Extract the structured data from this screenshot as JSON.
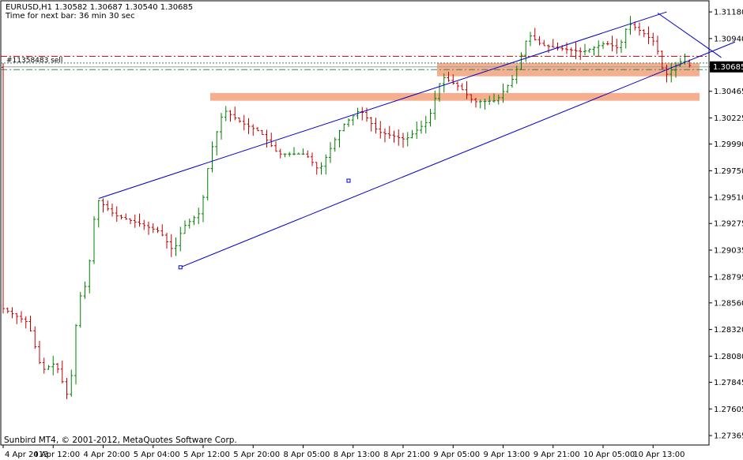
{
  "header": {
    "symbol_line": "EURUSD,H1  1.30582 1.30687 1.30540 1.30685",
    "timer_line": "Time for next bar: 36 min 30 sec"
  },
  "footer": {
    "copyright": "Sunbird MT4, © 2001-2012, MetaQuotes Software Corp."
  },
  "trade": {
    "label": "#11358483 sell",
    "price": 1.3072
  },
  "colors": {
    "background": "#ffffff",
    "bull": "#008000",
    "bear": "#c00000",
    "channel": "#0000c8",
    "zone": "#f4a582",
    "current_price_box": "#000000",
    "stop_line": "#c00000",
    "entry_line": "#2e8b57"
  },
  "chart_data": {
    "type": "candlestick",
    "title": "",
    "symbol": "EURUSD",
    "timeframe": "H1",
    "ohlc_last": {
      "open": 1.30582,
      "high": 1.30687,
      "low": 1.3054,
      "close": 1.30685
    },
    "current_price": 1.30685,
    "current_price_label": "1.30685",
    "y_ticks": [
      "1.31180",
      "1.30940",
      "1.30685",
      "1.30465",
      "1.30225",
      "1.29990",
      "1.29750",
      "1.29510",
      "1.29275",
      "1.29035",
      "1.28795",
      "1.28560",
      "1.28320",
      "1.28080",
      "1.27845",
      "1.27605",
      "1.27365"
    ],
    "x_ticks": [
      "4 Apr 2013",
      "4 Apr 12:00",
      "4 Apr 20:00",
      "5 Apr 04:00",
      "5 Apr 12:00",
      "5 Apr 20:00",
      "8 Apr 05:00",
      "8 Apr 13:00",
      "8 Apr 21:00",
      "9 Apr 05:00",
      "9 Apr 13:00",
      "9 Apr 21:00",
      "10 Apr 05:00",
      "10 Apr 13:00"
    ],
    "ylim": [
      1.2728,
      1.3128
    ],
    "candles_count": 127,
    "price_anchors": [
      [
        0,
        1.2852
      ],
      [
        6,
        1.2838
      ],
      [
        9,
        1.2795
      ],
      [
        12,
        1.2802
      ],
      [
        15,
        1.2768
      ],
      [
        17,
        1.2858
      ],
      [
        19,
        1.2875
      ],
      [
        21,
        1.295
      ],
      [
        25,
        1.2935
      ],
      [
        30,
        1.2928
      ],
      [
        35,
        1.292
      ],
      [
        38,
        1.2902
      ],
      [
        40,
        1.2924
      ],
      [
        44,
        1.2938
      ],
      [
        46,
        1.299
      ],
      [
        49,
        1.303
      ],
      [
        53,
        1.3018
      ],
      [
        57,
        1.301
      ],
      [
        61,
        1.299
      ],
      [
        67,
        1.299
      ],
      [
        70,
        1.2975
      ],
      [
        75,
        1.3015
      ],
      [
        79,
        1.303
      ],
      [
        83,
        1.301
      ],
      [
        89,
        1.3003
      ],
      [
        94,
        1.302
      ],
      [
        97,
        1.306
      ],
      [
        101,
        1.305
      ],
      [
        104,
        1.3037
      ],
      [
        109,
        1.3038
      ],
      [
        113,
        1.306
      ],
      [
        116,
        1.3098
      ],
      [
        119,
        1.3088
      ],
      [
        123,
        1.3085
      ],
      [
        128,
        1.3082
      ],
      [
        133,
        1.309
      ],
      [
        136,
        1.3085
      ],
      [
        138,
        1.3108
      ],
      [
        141,
        1.31
      ],
      [
        144,
        1.309
      ],
      [
        146,
        1.306
      ],
      [
        150,
        1.3075
      ],
      [
        152,
        1.3068
      ]
    ],
    "horizontal_lines": [
      {
        "name": "stop-level",
        "price": 1.3078,
        "style": "dash-dot",
        "color": "#c00000"
      },
      {
        "name": "entry-level",
        "price": 1.3066,
        "style": "dash-dot",
        "color": "#2e8b57"
      },
      {
        "name": "current-price-line",
        "price": 1.30685,
        "style": "solid",
        "color": "#a0a0a0"
      }
    ],
    "zones": [
      {
        "name": "resistance-zone",
        "price_top": 1.3072,
        "price_bottom": 1.306
      },
      {
        "name": "support-zone",
        "price_top": 1.3045,
        "price_bottom": 1.3038
      }
    ],
    "channel": {
      "upper": [
        [
          21,
          1.295
        ],
        [
          146,
          1.3118
        ]
      ],
      "lower": [
        [
          39,
          1.2888
        ],
        [
          134,
          1.3046
        ]
      ],
      "anchor_mid": [
        76,
        1.2966
      ]
    },
    "trendline_short": [
      [
        144,
        1.3117
      ],
      [
        158,
        1.3077
      ]
    ]
  }
}
